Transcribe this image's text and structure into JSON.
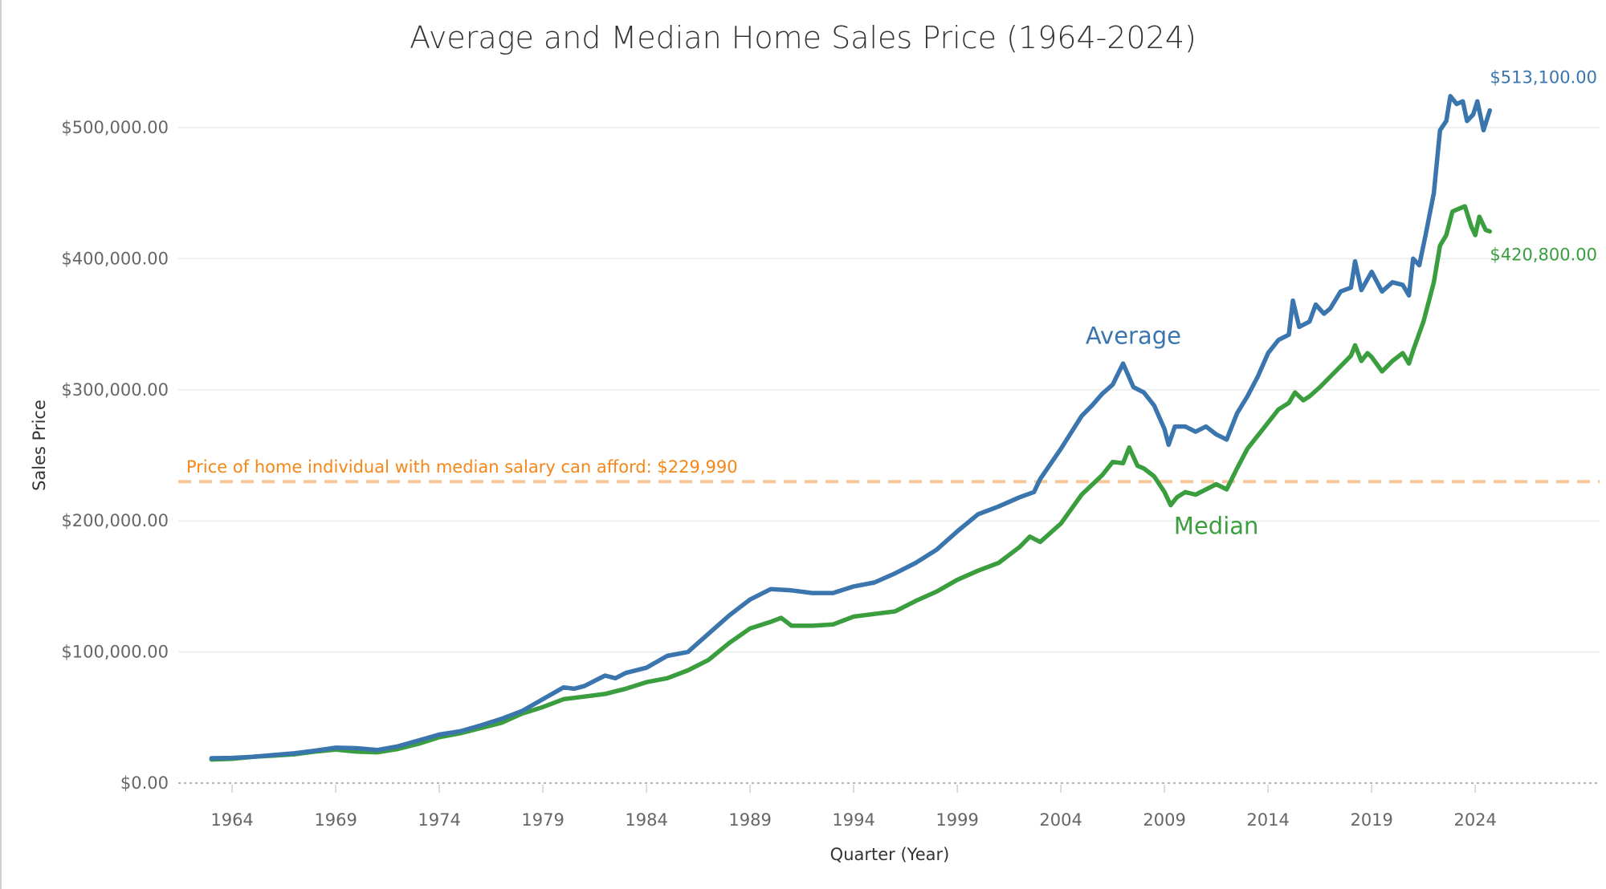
{
  "colors": {
    "average": "#3a75ad",
    "median": "#3a9e3f",
    "reference": "#f58618",
    "reference_line": "#f8c79b"
  },
  "chart_data": {
    "type": "line",
    "title": "Average and Median Home Sales Price (1964-2024)",
    "xlabel": "Quarter (Year)",
    "ylabel": "Sales Price",
    "xlim": [
      1961.4,
      2030
    ],
    "ylim": [
      0,
      530000
    ],
    "x_ticks": [
      1964,
      1969,
      1974,
      1979,
      1984,
      1989,
      1994,
      1999,
      2004,
      2009,
      2014,
      2019,
      2024
    ],
    "x_tick_labels": [
      "1964",
      "1969",
      "1974",
      "1979",
      "1984",
      "1989",
      "1994",
      "1999",
      "2004",
      "2009",
      "2014",
      "2019",
      "2024"
    ],
    "y_ticks": [
      0,
      100000,
      200000,
      300000,
      400000,
      500000
    ],
    "y_tick_labels": [
      "$0.00",
      "$100,000.00",
      "$200,000.00",
      "$300,000.00",
      "$400,000.00",
      "$500,000.00"
    ],
    "grid": true,
    "series": [
      {
        "name": "Average",
        "label": "Average",
        "end_label": "$513,100.00",
        "points": [
          [
            1963.0,
            19000
          ],
          [
            1964.0,
            19200
          ],
          [
            1965.0,
            20000
          ],
          [
            1966.0,
            21400
          ],
          [
            1967.0,
            22700
          ],
          [
            1968.0,
            24700
          ],
          [
            1969.0,
            27000
          ],
          [
            1970.0,
            26600
          ],
          [
            1971.0,
            25200
          ],
          [
            1972.0,
            28000
          ],
          [
            1973.0,
            32500
          ],
          [
            1974.0,
            37000
          ],
          [
            1975.0,
            39500
          ],
          [
            1976.0,
            44000
          ],
          [
            1977.0,
            49000
          ],
          [
            1978.0,
            55000
          ],
          [
            1979.0,
            64000
          ],
          [
            1980.0,
            73000
          ],
          [
            1980.5,
            72000
          ],
          [
            1981.0,
            74000
          ],
          [
            1982.0,
            82000
          ],
          [
            1982.5,
            80000
          ],
          [
            1983.0,
            84000
          ],
          [
            1984.0,
            88000
          ],
          [
            1985.0,
            97000
          ],
          [
            1986.0,
            100000
          ],
          [
            1987.0,
            114000
          ],
          [
            1988.0,
            128000
          ],
          [
            1989.0,
            140000
          ],
          [
            1990.0,
            148000
          ],
          [
            1991.0,
            147000
          ],
          [
            1992.0,
            145000
          ],
          [
            1993.0,
            145000
          ],
          [
            1994.0,
            150000
          ],
          [
            1995.0,
            153000
          ],
          [
            1996.0,
            160000
          ],
          [
            1997.0,
            168000
          ],
          [
            1998.0,
            178000
          ],
          [
            1999.0,
            192000
          ],
          [
            2000.0,
            205000
          ],
          [
            2001.0,
            211000
          ],
          [
            2002.0,
            218000
          ],
          [
            2002.7,
            222000
          ],
          [
            2003.0,
            232000
          ],
          [
            2004.0,
            255000
          ],
          [
            2005.0,
            280000
          ],
          [
            2005.5,
            288000
          ],
          [
            2006.0,
            297000
          ],
          [
            2006.5,
            304000
          ],
          [
            2007.0,
            320000
          ],
          [
            2007.5,
            302000
          ],
          [
            2008.0,
            298000
          ],
          [
            2008.5,
            288000
          ],
          [
            2009.0,
            270000
          ],
          [
            2009.2,
            258000
          ],
          [
            2009.5,
            272000
          ],
          [
            2010.0,
            272000
          ],
          [
            2010.5,
            268000
          ],
          [
            2011.0,
            272000
          ],
          [
            2011.5,
            266000
          ],
          [
            2012.0,
            262000
          ],
          [
            2012.5,
            282000
          ],
          [
            2013.0,
            295000
          ],
          [
            2013.5,
            310000
          ],
          [
            2014.0,
            328000
          ],
          [
            2014.5,
            338000
          ],
          [
            2015.0,
            342000
          ],
          [
            2015.2,
            368000
          ],
          [
            2015.5,
            348000
          ],
          [
            2016.0,
            352000
          ],
          [
            2016.3,
            365000
          ],
          [
            2016.7,
            358000
          ],
          [
            2017.0,
            362000
          ],
          [
            2017.5,
            375000
          ],
          [
            2018.0,
            378000
          ],
          [
            2018.2,
            398000
          ],
          [
            2018.5,
            376000
          ],
          [
            2019.0,
            390000
          ],
          [
            2019.5,
            375000
          ],
          [
            2020.0,
            382000
          ],
          [
            2020.5,
            380000
          ],
          [
            2020.8,
            372000
          ],
          [
            2021.0,
            400000
          ],
          [
            2021.3,
            395000
          ],
          [
            2021.6,
            418000
          ],
          [
            2022.0,
            450000
          ],
          [
            2022.3,
            498000
          ],
          [
            2022.6,
            505000
          ],
          [
            2022.8,
            524000
          ],
          [
            2023.1,
            518000
          ],
          [
            2023.4,
            520000
          ],
          [
            2023.6,
            505000
          ],
          [
            2023.9,
            510000
          ],
          [
            2024.1,
            520000
          ],
          [
            2024.4,
            498000
          ],
          [
            2024.7,
            513100
          ]
        ]
      },
      {
        "name": "Median",
        "label": "Median",
        "end_label": "$420,800.00",
        "points": [
          [
            1963.0,
            18000
          ],
          [
            1964.0,
            18500
          ],
          [
            1965.0,
            20000
          ],
          [
            1966.0,
            21000
          ],
          [
            1967.0,
            22000
          ],
          [
            1968.0,
            24000
          ],
          [
            1969.0,
            25500
          ],
          [
            1970.0,
            24000
          ],
          [
            1971.0,
            23500
          ],
          [
            1972.0,
            26000
          ],
          [
            1973.0,
            30000
          ],
          [
            1974.0,
            35000
          ],
          [
            1975.0,
            38000
          ],
          [
            1976.0,
            42000
          ],
          [
            1977.0,
            46000
          ],
          [
            1978.0,
            53000
          ],
          [
            1979.0,
            58000
          ],
          [
            1980.0,
            64000
          ],
          [
            1981.0,
            66000
          ],
          [
            1982.0,
            68000
          ],
          [
            1983.0,
            72000
          ],
          [
            1984.0,
            77000
          ],
          [
            1985.0,
            80000
          ],
          [
            1986.0,
            86000
          ],
          [
            1987.0,
            94000
          ],
          [
            1988.0,
            107000
          ],
          [
            1989.0,
            118000
          ],
          [
            1990.0,
            123000
          ],
          [
            1990.5,
            126000
          ],
          [
            1991.0,
            120000
          ],
          [
            1992.0,
            120000
          ],
          [
            1993.0,
            121000
          ],
          [
            1994.0,
            127000
          ],
          [
            1995.0,
            129000
          ],
          [
            1996.0,
            131000
          ],
          [
            1997.0,
            139000
          ],
          [
            1998.0,
            146000
          ],
          [
            1999.0,
            155000
          ],
          [
            2000.0,
            162000
          ],
          [
            2001.0,
            168000
          ],
          [
            2002.0,
            180000
          ],
          [
            2002.5,
            188000
          ],
          [
            2003.0,
            184000
          ],
          [
            2004.0,
            198000
          ],
          [
            2005.0,
            220000
          ],
          [
            2006.0,
            235000
          ],
          [
            2006.5,
            245000
          ],
          [
            2007.0,
            244000
          ],
          [
            2007.3,
            256000
          ],
          [
            2007.7,
            242000
          ],
          [
            2008.0,
            240000
          ],
          [
            2008.5,
            234000
          ],
          [
            2009.0,
            222000
          ],
          [
            2009.3,
            212000
          ],
          [
            2009.6,
            218000
          ],
          [
            2010.0,
            222000
          ],
          [
            2010.5,
            220000
          ],
          [
            2011.0,
            224000
          ],
          [
            2011.5,
            228000
          ],
          [
            2012.0,
            224000
          ],
          [
            2012.5,
            240000
          ],
          [
            2013.0,
            255000
          ],
          [
            2013.5,
            265000
          ],
          [
            2014.0,
            275000
          ],
          [
            2014.5,
            285000
          ],
          [
            2015.0,
            290000
          ],
          [
            2015.3,
            298000
          ],
          [
            2015.7,
            292000
          ],
          [
            2016.0,
            295000
          ],
          [
            2016.5,
            302000
          ],
          [
            2017.0,
            310000
          ],
          [
            2017.5,
            318000
          ],
          [
            2018.0,
            326000
          ],
          [
            2018.2,
            334000
          ],
          [
            2018.5,
            322000
          ],
          [
            2018.8,
            328000
          ],
          [
            2019.0,
            325000
          ],
          [
            2019.5,
            314000
          ],
          [
            2020.0,
            322000
          ],
          [
            2020.5,
            328000
          ],
          [
            2020.8,
            320000
          ],
          [
            2021.0,
            330000
          ],
          [
            2021.5,
            352000
          ],
          [
            2022.0,
            382000
          ],
          [
            2022.3,
            410000
          ],
          [
            2022.6,
            418000
          ],
          [
            2022.9,
            436000
          ],
          [
            2023.2,
            438000
          ],
          [
            2023.5,
            440000
          ],
          [
            2023.8,
            425000
          ],
          [
            2024.0,
            418000
          ],
          [
            2024.2,
            432000
          ],
          [
            2024.5,
            422000
          ],
          [
            2024.7,
            420800
          ]
        ]
      }
    ],
    "reference_line": {
      "value": 229990,
      "label": "Price of home individual with median salary can afford: $229,990"
    },
    "annotations": [
      {
        "series": "Average",
        "text": "Average",
        "x": 2007.5,
        "y": 335000
      },
      {
        "series": "Median",
        "text": "Median",
        "x": 2011.5,
        "y": 190000
      }
    ]
  }
}
